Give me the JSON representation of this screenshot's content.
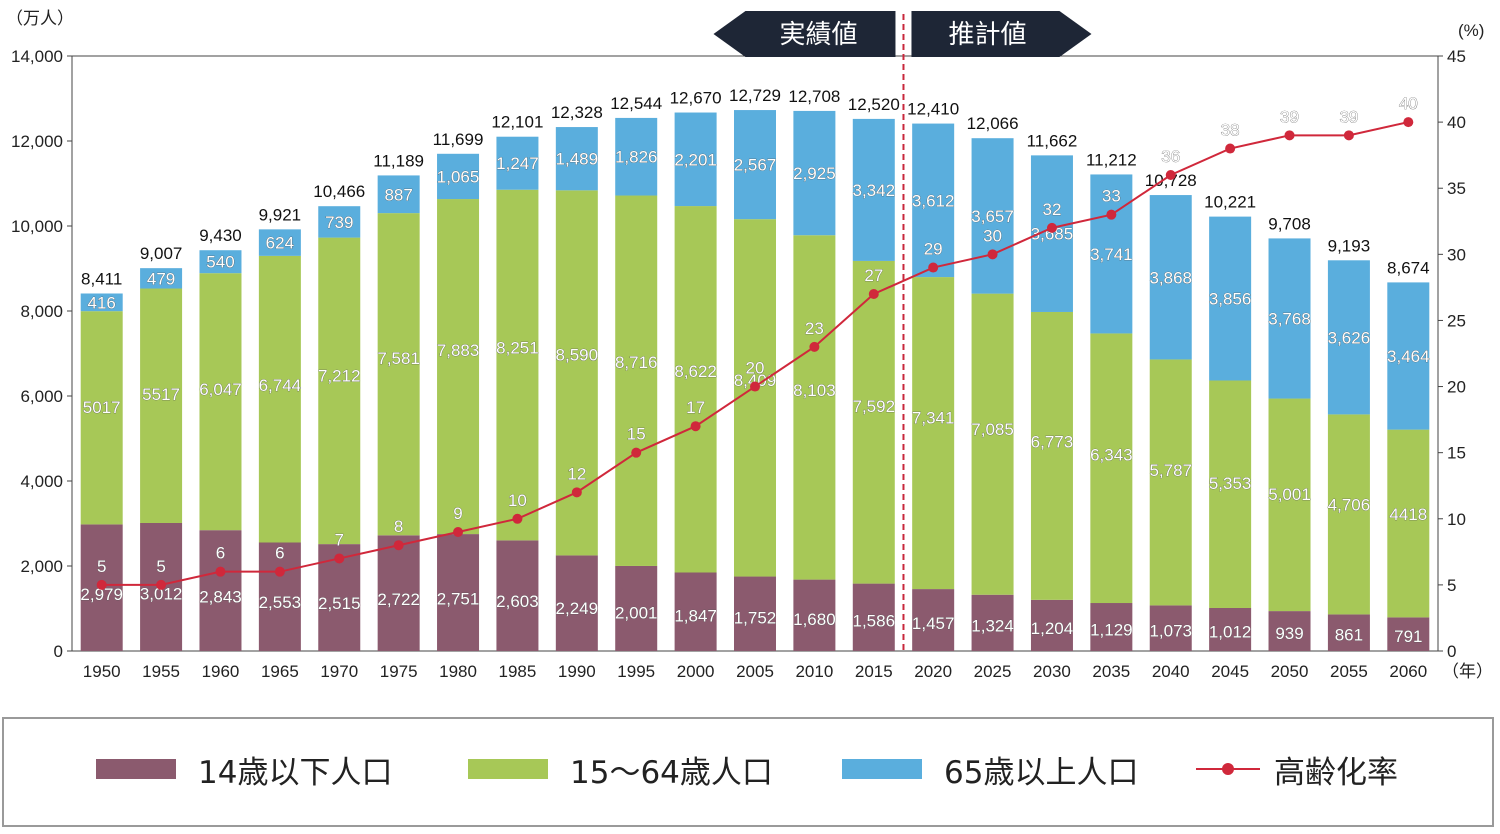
{
  "chart_data": {
    "type": "bar",
    "stacked": true,
    "categories": [
      "1950",
      "1955",
      "1960",
      "1965",
      "1970",
      "1975",
      "1980",
      "1985",
      "1990",
      "1995",
      "2000",
      "2005",
      "2010",
      "2015",
      "2020",
      "2025",
      "2030",
      "2035",
      "2040",
      "2045",
      "2050",
      "2055",
      "2060"
    ],
    "series": [
      {
        "name": "14歳以下人口",
        "color": "#8b5a6e",
        "label_color": "#ffffff",
        "values": [
          2979,
          3012,
          2843,
          2553,
          2515,
          2722,
          2751,
          2603,
          2249,
          2001,
          1847,
          1752,
          1680,
          1586,
          1457,
          1324,
          1204,
          1129,
          1073,
          1012,
          939,
          861,
          791
        ],
        "labels": [
          "2,979",
          "3,012",
          "2,843",
          "2,553",
          "2,515",
          "2,722",
          "2,751",
          "2,603",
          "2,249",
          "2,001",
          "1,847",
          "1,752",
          "1,680",
          "1,586",
          "1,457",
          "1,324",
          "1,204",
          "1,129",
          "1,073",
          "1,012",
          "939",
          "861",
          "791"
        ]
      },
      {
        "name": "15〜64歳人口",
        "color": "#a7c857",
        "label_color": "#ffffff",
        "values": [
          5017,
          5517,
          6047,
          6744,
          7212,
          7581,
          7883,
          8251,
          8590,
          8716,
          8622,
          8409,
          8103,
          7592,
          7341,
          7085,
          6773,
          6343,
          5787,
          5353,
          5001,
          4706,
          4418
        ],
        "labels": [
          "5017",
          "5517",
          "6,047",
          "6,744",
          "7,212",
          "7,581",
          "7,883",
          "8,251",
          "8,590",
          "8,716",
          "8,622",
          "8,409",
          "8,103",
          "7,592",
          "7,341",
          "7,085",
          "6,773",
          "6,343",
          "5,787",
          "5,353",
          "5,001",
          "4,706",
          "4418"
        ]
      },
      {
        "name": "65歳以上人口",
        "color": "#5aaedd",
        "label_color": "#ffffff",
        "values": [
          416,
          479,
          540,
          624,
          739,
          887,
          1065,
          1247,
          1489,
          1826,
          2201,
          2567,
          2925,
          3342,
          3612,
          3657,
          3685,
          3741,
          3868,
          3856,
          3768,
          3626,
          3464
        ],
        "labels": [
          "416",
          "479",
          "540",
          "624",
          "739",
          "887",
          "1,065",
          "1,247",
          "1,489",
          "1,826",
          "2,201",
          "2,567",
          "2,925",
          "3,342",
          "3,612",
          "3,657",
          "3,685",
          "3,741",
          "3,868",
          "3,856",
          "3,768",
          "3,626",
          "3,464"
        ]
      }
    ],
    "totals": [
      "8,411",
      "9,007",
      "9,430",
      "9,921",
      "10,466",
      "11,189",
      "11,699",
      "12,101",
      "12,328",
      "12,544",
      "12,670",
      "12,729",
      "12,708",
      "12,520",
      "12,410",
      "12,066",
      "11,662",
      "11,212",
      "10,728",
      "10,221",
      "9,708",
      "9,193",
      "8,674"
    ],
    "line": {
      "name": "高齢化率",
      "color": "#d0283b",
      "label_color": "#ffffff",
      "values": [
        5,
        5,
        6,
        6,
        7,
        8,
        9,
        10,
        12,
        15,
        17,
        20,
        23,
        27,
        29,
        30,
        32,
        33,
        36,
        38,
        39,
        39,
        40
      ],
      "labels": [
        "5",
        "5",
        "6",
        "6",
        "7",
        "8",
        "9",
        "10",
        "12",
        "15",
        "17",
        "20",
        "23",
        "27",
        "29",
        "30",
        "32",
        "33",
        "36",
        "38",
        "39",
        "39",
        "40"
      ]
    },
    "y_left": {
      "unit": "（万人）",
      "min": 0,
      "max": 14000,
      "ticks": [
        "0",
        "2,000",
        "4,000",
        "6,000",
        "8,000",
        "10,000",
        "12,000",
        "14,000"
      ]
    },
    "y_right": {
      "unit": "(%)",
      "min": 0,
      "max": 45,
      "ticks": [
        "0",
        "5",
        "10",
        "15",
        "20",
        "25",
        "30",
        "35",
        "40",
        "45"
      ]
    },
    "x_unit": "（年）",
    "divider": {
      "after": "2015",
      "left_label": "実績値",
      "right_label": "推計値",
      "color": "#c8283c"
    },
    "legend_position": "bottom",
    "grid": false
  },
  "legend": {
    "items": [
      {
        "label": "14歳以下人口",
        "color": "#8b5a6e"
      },
      {
        "label": "15〜64歳人口",
        "color": "#a7c857"
      },
      {
        "label": "65歳以上人口",
        "color": "#5aaedd"
      },
      {
        "label": "高齢化率",
        "color": "#d0283b"
      }
    ]
  }
}
